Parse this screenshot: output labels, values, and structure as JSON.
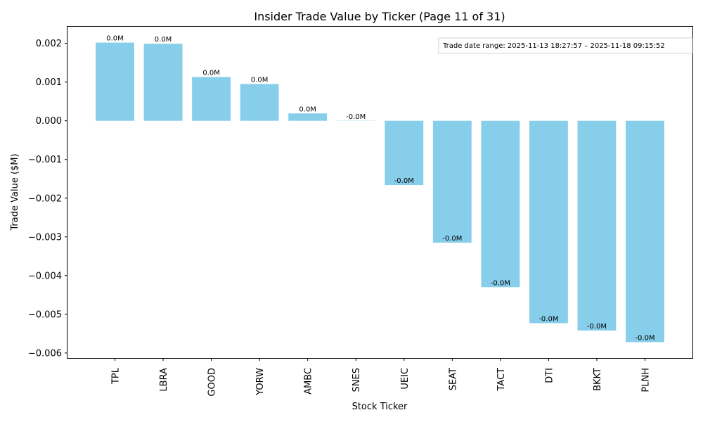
{
  "chart_data": {
    "type": "bar",
    "title": "Insider Trade Value by Ticker (Page 11 of 31)",
    "xlabel": "Stock Ticker",
    "ylabel": "Trade Value ($M)",
    "categories": [
      "TPL",
      "LBRA",
      "GOOD",
      "YORW",
      "AMBC",
      "SNES",
      "UEIC",
      "SEAT",
      "TACT",
      "DTI",
      "BKKT",
      "PLNH"
    ],
    "values": [
      0.00202,
      0.00199,
      0.00113,
      0.00095,
      0.00019,
      -5e-06,
      -0.00166,
      -0.00315,
      -0.0043,
      -0.00523,
      -0.00542,
      -0.00572
    ],
    "data_labels": [
      "0.0M",
      "0.0M",
      "0.0M",
      "0.0M",
      "0.0M",
      "-0.0M",
      "-0.0M",
      "-0.0M",
      "-0.0M",
      "-0.0M",
      "-0.0M",
      "-0.0M"
    ],
    "ylim": [
      -0.00613,
      0.00243
    ],
    "yticks": [
      0.002,
      0.001,
      0.0,
      -0.001,
      -0.002,
      -0.003,
      -0.004,
      -0.005,
      -0.006
    ],
    "ytick_labels": [
      "0.002",
      "0.001",
      "0.000",
      "−0.001",
      "−0.002",
      "−0.003",
      "−0.004",
      "−0.005",
      "−0.006"
    ],
    "bar_color": "#87ceeb",
    "annotation": "Trade date range: 2025-11-13 18:27:57 – 2025-11-18 09:15:52",
    "grid": false
  }
}
